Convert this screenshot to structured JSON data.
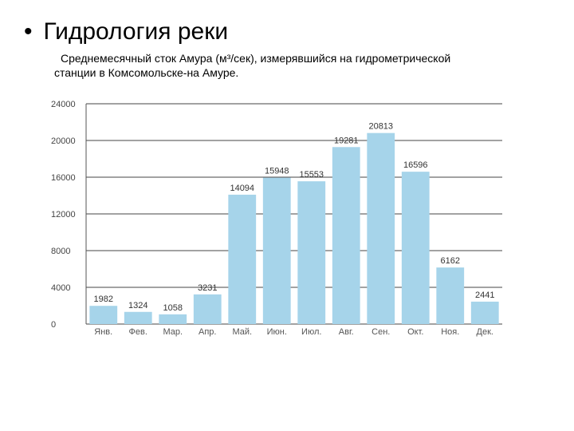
{
  "slide": {
    "title": "Гидрология реки",
    "bullet": "•",
    "subtitle_line1": "Среднемесячный сток Амура (м³/сек), измерявшийся на гидрометрической",
    "subtitle_line2": "станции в Комсомольске-на Амуре."
  },
  "chart_data": {
    "type": "bar",
    "categories": [
      "Янв.",
      "Фев.",
      "Мар.",
      "Апр.",
      "Май.",
      "Июн.",
      "Июл.",
      "Авг.",
      "Сен.",
      "Окт.",
      "Ноя.",
      "Дек."
    ],
    "values": [
      1982,
      1324,
      1058,
      3231,
      14094,
      15948,
      15553,
      19281,
      20813,
      16596,
      6162,
      2441
    ],
    "value_labels": [
      "1982",
      "1324",
      "1058",
      "3231",
      "14094",
      "15948",
      "15553",
      "19281",
      "20813",
      "16596",
      "6162",
      "2441"
    ],
    "y_ticks": [
      0,
      4000,
      8000,
      12000,
      16000,
      20000,
      24000
    ],
    "y_tick_labels": [
      "0",
      "4000",
      "8000",
      "12000",
      "16000",
      "20000",
      "24000"
    ],
    "ylim": [
      0,
      24000
    ],
    "grid": true,
    "bar_color": "#a6d4ea",
    "grid_color": "#444444"
  }
}
